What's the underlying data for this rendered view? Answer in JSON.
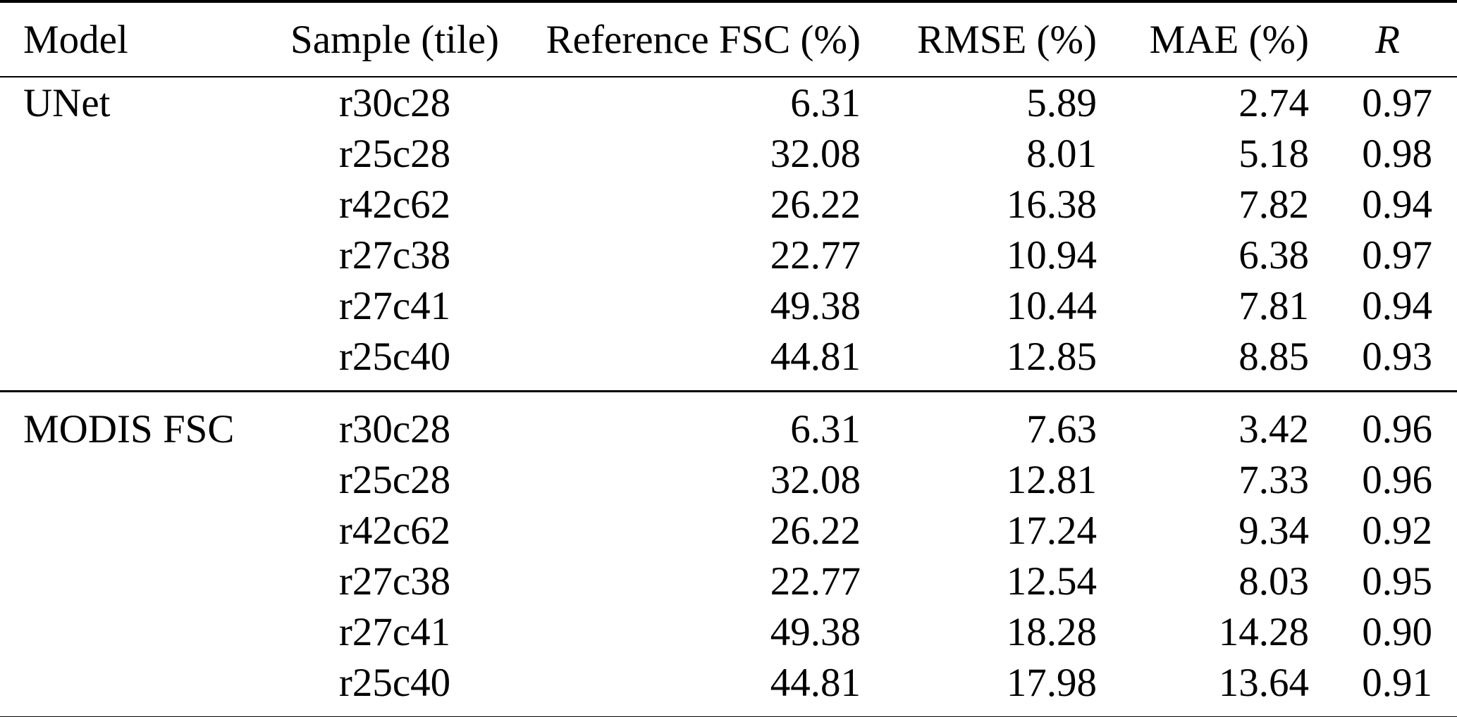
{
  "colors": {
    "background": "#ffffff",
    "text": "#000000",
    "rule": "#000000"
  },
  "table": {
    "columns": [
      {
        "key": "model",
        "label": "Model"
      },
      {
        "key": "sample",
        "label": "Sample (tile)"
      },
      {
        "key": "reference_fsc",
        "label": "Reference FSC (%)"
      },
      {
        "key": "rmse",
        "label": "RMSE (%)"
      },
      {
        "key": "mae",
        "label": "MAE (%)"
      },
      {
        "key": "r",
        "label": "R"
      }
    ],
    "groups": [
      {
        "model": "UNet",
        "rows": [
          {
            "sample": "r30c28",
            "reference_fsc": "6.31",
            "rmse": "5.89",
            "mae": "2.74",
            "r": "0.97"
          },
          {
            "sample": "r25c28",
            "reference_fsc": "32.08",
            "rmse": "8.01",
            "mae": "5.18",
            "r": "0.98"
          },
          {
            "sample": "r42c62",
            "reference_fsc": "26.22",
            "rmse": "16.38",
            "mae": "7.82",
            "r": "0.94"
          },
          {
            "sample": "r27c38",
            "reference_fsc": "22.77",
            "rmse": "10.94",
            "mae": "6.38",
            "r": "0.97"
          },
          {
            "sample": "r27c41",
            "reference_fsc": "49.38",
            "rmse": "10.44",
            "mae": "7.81",
            "r": "0.94"
          },
          {
            "sample": "r25c40",
            "reference_fsc": "44.81",
            "rmse": "12.85",
            "mae": "8.85",
            "r": "0.93"
          }
        ]
      },
      {
        "model": "MODIS FSC",
        "rows": [
          {
            "sample": "r30c28",
            "reference_fsc": "6.31",
            "rmse": "7.63",
            "mae": "3.42",
            "r": "0.96"
          },
          {
            "sample": "r25c28",
            "reference_fsc": "32.08",
            "rmse": "12.81",
            "mae": "7.33",
            "r": "0.96"
          },
          {
            "sample": "r42c62",
            "reference_fsc": "26.22",
            "rmse": "17.24",
            "mae": "9.34",
            "r": "0.92"
          },
          {
            "sample": "r27c38",
            "reference_fsc": "22.77",
            "rmse": "12.54",
            "mae": "8.03",
            "r": "0.95"
          },
          {
            "sample": "r27c41",
            "reference_fsc": "49.38",
            "rmse": "18.28",
            "mae": "14.28",
            "r": "0.90"
          },
          {
            "sample": "r25c40",
            "reference_fsc": "44.81",
            "rmse": "17.98",
            "mae": "13.64",
            "r": "0.91"
          }
        ]
      }
    ]
  },
  "chart_data": {
    "type": "table",
    "title": "",
    "columns": [
      "Model",
      "Sample (tile)",
      "Reference FSC (%)",
      "RMSE (%)",
      "MAE (%)",
      "R"
    ],
    "rows": [
      [
        "UNet",
        "r30c28",
        6.31,
        5.89,
        2.74,
        0.97
      ],
      [
        "UNet",
        "r25c28",
        32.08,
        8.01,
        5.18,
        0.98
      ],
      [
        "UNet",
        "r42c62",
        26.22,
        16.38,
        7.82,
        0.94
      ],
      [
        "UNet",
        "r27c38",
        22.77,
        10.94,
        6.38,
        0.97
      ],
      [
        "UNet",
        "r27c41",
        49.38,
        10.44,
        7.81,
        0.94
      ],
      [
        "UNet",
        "r25c40",
        44.81,
        12.85,
        8.85,
        0.93
      ],
      [
        "MODIS FSC",
        "r30c28",
        6.31,
        7.63,
        3.42,
        0.96
      ],
      [
        "MODIS FSC",
        "r25c28",
        32.08,
        12.81,
        7.33,
        0.96
      ],
      [
        "MODIS FSC",
        "r42c62",
        26.22,
        17.24,
        9.34,
        0.92
      ],
      [
        "MODIS FSC",
        "r27c38",
        22.77,
        12.54,
        8.03,
        0.95
      ],
      [
        "MODIS FSC",
        "r27c41",
        49.38,
        18.28,
        14.28,
        0.9
      ],
      [
        "MODIS FSC",
        "r25c40",
        44.81,
        17.98,
        13.64,
        0.91
      ]
    ]
  }
}
